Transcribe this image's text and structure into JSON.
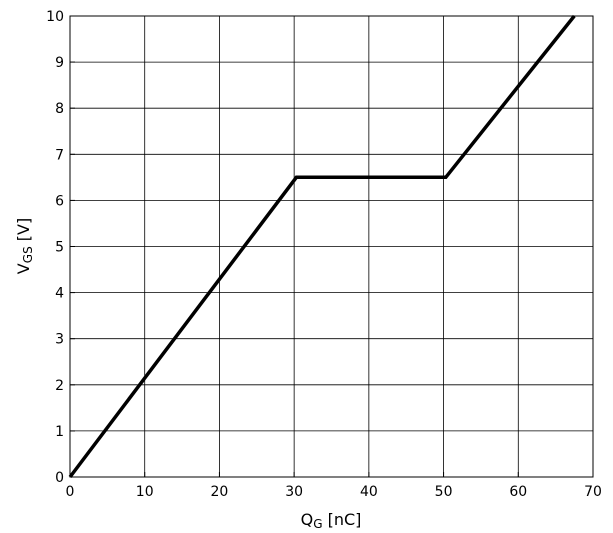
{
  "chart_data": {
    "type": "line",
    "xlabel": {
      "main": "Q",
      "sub": "G",
      "unit": " [nC]"
    },
    "ylabel": {
      "main": "V",
      "sub": "GS",
      "unit": " [V]"
    },
    "xlim": [
      0,
      70
    ],
    "ylim": [
      0,
      10
    ],
    "xticks": [
      0,
      10,
      20,
      30,
      40,
      50,
      60,
      70
    ],
    "yticks": [
      0,
      1,
      2,
      3,
      4,
      5,
      6,
      7,
      8,
      9,
      10
    ],
    "xtick_labels": [
      "0",
      "10",
      "20",
      "30",
      "40",
      "50",
      "60",
      "70"
    ],
    "ytick_labels": [
      "0",
      "1",
      "2",
      "3",
      "4",
      "5",
      "6",
      "7",
      "8",
      "9",
      "10"
    ],
    "grid": true,
    "series": [
      {
        "color": "#000000",
        "x": [
          0,
          30.3,
          50.3,
          67.5
        ],
        "y": [
          0,
          6.5,
          6.5,
          10
        ]
      }
    ]
  }
}
